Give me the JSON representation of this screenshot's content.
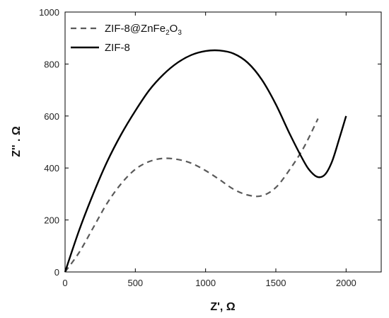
{
  "chart_data": {
    "type": "line",
    "xlabel": "Z', Ω",
    "ylabel": "Z'' . Ω",
    "xlim": [
      0,
      2250
    ],
    "ylim": [
      0,
      1000
    ],
    "xticks": [
      0,
      500,
      1000,
      1500,
      2000
    ],
    "yticks": [
      0,
      200,
      400,
      600,
      800,
      1000
    ],
    "xtick_labels": [
      "0",
      "500",
      "1000",
      "1500",
      "2000"
    ],
    "ytick_labels": [
      "0",
      "200",
      "400",
      "600",
      "800",
      "1000"
    ],
    "legend_position": "top-left",
    "grid": false,
    "series": [
      {
        "name": "ZIF-8@ZnFe2O3",
        "legend_parts": [
          "ZIF-8@ZnFe",
          "2",
          "O",
          "3"
        ],
        "style": "dashed",
        "color": "#5a5a5a",
        "x": [
          0,
          100,
          200,
          300,
          400,
          500,
          600,
          700,
          800,
          900,
          1000,
          1100,
          1200,
          1300,
          1400,
          1500,
          1600,
          1700,
          1800
        ],
        "y": [
          0,
          75,
          170,
          265,
          340,
          395,
          425,
          437,
          433,
          418,
          390,
          355,
          318,
          296,
          293,
          325,
          395,
          480,
          590
        ]
      },
      {
        "name": "ZIF-8",
        "legend_parts": [
          "ZIF-8"
        ],
        "style": "solid",
        "color": "#000000",
        "x": [
          0,
          100,
          200,
          300,
          400,
          500,
          600,
          700,
          800,
          900,
          1000,
          1100,
          1200,
          1300,
          1400,
          1500,
          1600,
          1700,
          1750,
          1800,
          1850,
          1900,
          1950,
          2000
        ],
        "y": [
          0,
          160,
          300,
          425,
          530,
          620,
          700,
          760,
          805,
          835,
          850,
          852,
          840,
          805,
          740,
          645,
          530,
          425,
          385,
          365,
          375,
          425,
          510,
          600
        ]
      }
    ]
  }
}
